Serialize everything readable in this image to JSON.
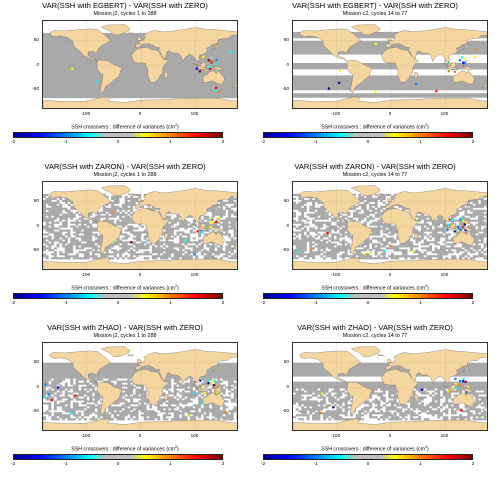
{
  "colorbar": {
    "label_main": "SSH crossovers : difference of variances (cm",
    "label_sup": "2",
    "label_end": ")",
    "ticks": [
      "-2",
      "-1",
      "0",
      "1",
      "2"
    ],
    "colors": [
      "#00008f",
      "#0000ff",
      "#0080ff",
      "#00ffff",
      "#bfbfbf",
      "#ffff00",
      "#ff8000",
      "#ff0000",
      "#800000"
    ]
  },
  "map_colors": {
    "ocean": "#ffffff",
    "land": "#f5d5a0",
    "missing": "#a9a9a9"
  },
  "axes": {
    "y_ticks": [
      "50",
      "0",
      "-50"
    ],
    "x_ticks": [
      "-100",
      "0",
      "100"
    ]
  },
  "chart_data": [
    {
      "type": "heatmap",
      "title": "VAR(SSH with EGBERT) - VAR(SSH with ZERO)",
      "subtitle": "Mission j2, cycles 1 to 288",
      "xlim": [
        -180,
        180
      ],
      "ylim": [
        -90,
        90
      ],
      "colorbar_range": [
        -2,
        2
      ],
      "coverage": [
        [
          -66,
          66,
          "gray"
        ]
      ]
    },
    {
      "type": "heatmap",
      "title": "VAR(SSH with EGBERT) - VAR(SSH with ZERO)",
      "subtitle": "Mission c2, cycles 14 to 77",
      "xlim": [
        -180,
        180
      ],
      "ylim": [
        -90,
        90
      ],
      "colorbar_range": [
        -2,
        2
      ],
      "coverage": [
        [
          55,
          68,
          "gray"
        ],
        [
          22,
          50,
          "gray"
        ],
        [
          7,
          20,
          "white"
        ],
        [
          -8,
          5,
          "gray"
        ],
        [
          -20,
          -8,
          "white"
        ],
        [
          -50,
          -20,
          "gray"
        ],
        [
          -56,
          -50,
          "white"
        ],
        [
          -65,
          -56,
          "gray"
        ]
      ]
    },
    {
      "type": "heatmap",
      "title": "VAR(SSH with ZARON) - VAR(SSH with ZERO)",
      "subtitle": "Mission j2, cycles 1 to 288",
      "xlim": [
        -180,
        180
      ],
      "ylim": [
        -90,
        90
      ],
      "colorbar_range": [
        -2,
        2
      ],
      "coverage": [
        [
          -66,
          66,
          "patchy"
        ]
      ]
    },
    {
      "type": "heatmap",
      "title": "VAR(SSH with ZARON) - VAR(SSH with ZERO)",
      "subtitle": "Mission c2, cycles 14 to 77",
      "xlim": [
        -180,
        180
      ],
      "ylim": [
        -90,
        90
      ],
      "colorbar_range": [
        -2,
        2
      ],
      "coverage": [
        [
          -66,
          66,
          "patchy"
        ]
      ]
    },
    {
      "type": "heatmap",
      "title": "VAR(SSH with ZHAO) - VAR(SSH with ZERO)",
      "subtitle": "Mission j2, cycles 1 to 288",
      "xlim": [
        -180,
        180
      ],
      "ylim": [
        -90,
        90
      ],
      "colorbar_range": [
        -2,
        2
      ],
      "coverage": [
        [
          50,
          66,
          "white"
        ],
        [
          18,
          50,
          "gray"
        ],
        [
          -66,
          18,
          "patchy"
        ]
      ]
    },
    {
      "type": "heatmap",
      "title": "VAR(SSH with ZHAO) - VAR(SSH with ZERO)",
      "subtitle": "Mission c2, cycles 14 to 77",
      "xlim": [
        -180,
        180
      ],
      "ylim": [
        -90,
        90
      ],
      "colorbar_range": [
        -2,
        2
      ],
      "coverage": [
        [
          50,
          66,
          "white"
        ],
        [
          22,
          50,
          "gray"
        ],
        [
          12,
          22,
          "white"
        ],
        [
          -2,
          12,
          "gray"
        ],
        [
          -66,
          -2,
          "patchy"
        ]
      ]
    }
  ]
}
